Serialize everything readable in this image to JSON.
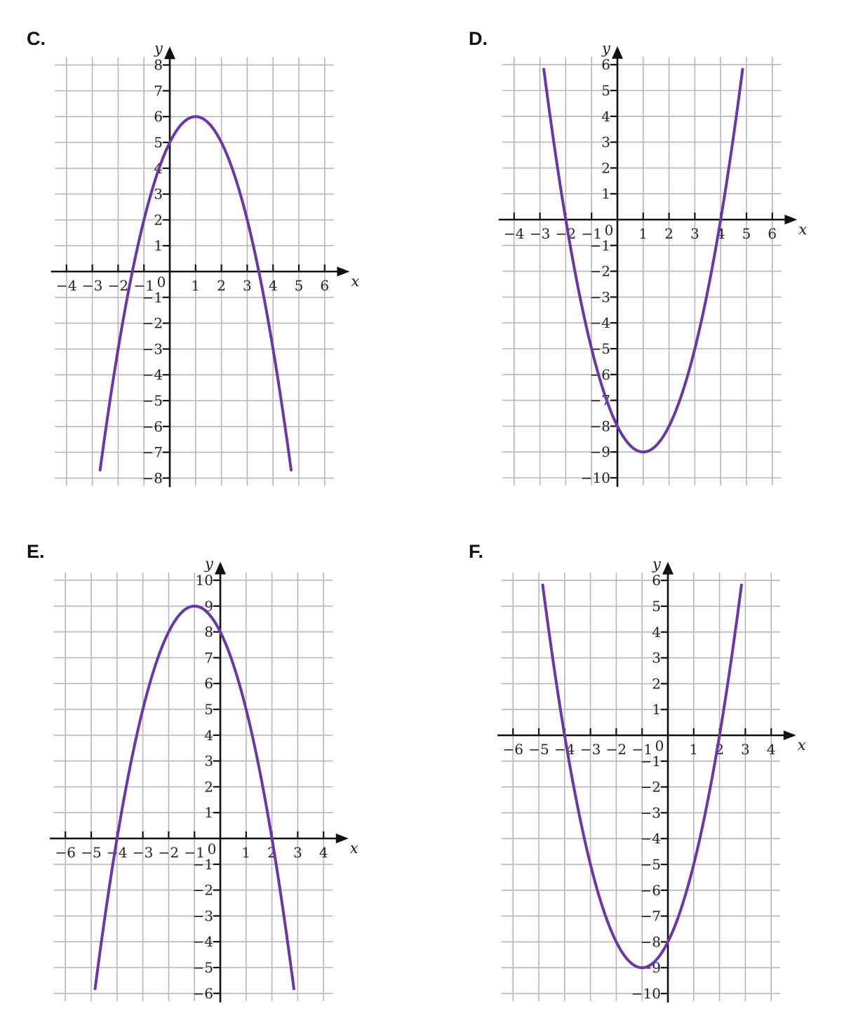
{
  "colors": {
    "curve": "#6a36a8",
    "grid": "#b8b8b8",
    "axis": "#111111"
  },
  "chart_data": [
    {
      "type": "line",
      "label": "C.",
      "xlabel": "x",
      "ylabel": "y",
      "xlim": [
        -4,
        6
      ],
      "ylim": [
        -8,
        8
      ],
      "grid": true,
      "x_ticks": [
        -4,
        -3,
        -2,
        -1,
        1,
        2,
        3,
        4,
        5,
        6
      ],
      "y_ticks": [
        -8,
        -7,
        -6,
        -5,
        -4,
        -3,
        -2,
        -1,
        1,
        2,
        3,
        4,
        5,
        6,
        7,
        8
      ],
      "origin_label": "0",
      "series": [
        {
          "a": -1,
          "h": 1,
          "k": 6,
          "x_range": [
            -2.7,
            4.7
          ],
          "key_points": [
            [
              -1.45,
              0
            ],
            [
              0,
              5
            ],
            [
              1,
              6
            ],
            [
              3.45,
              0
            ]
          ]
        }
      ]
    },
    {
      "type": "line",
      "label": "D.",
      "xlabel": "x",
      "ylabel": "y",
      "xlim": [
        -4,
        6
      ],
      "ylim": [
        -10,
        6
      ],
      "grid": true,
      "x_ticks": [
        -4,
        -3,
        -2,
        -1,
        1,
        2,
        3,
        4,
        5,
        6
      ],
      "y_ticks": [
        -10,
        -9,
        -8,
        -7,
        -6,
        -5,
        -4,
        -3,
        -2,
        -1,
        1,
        2,
        3,
        4,
        5,
        6
      ],
      "origin_label": "0",
      "series": [
        {
          "a": 1,
          "h": 1,
          "k": -9,
          "x_range": [
            -2.85,
            4.85
          ],
          "key_points": [
            [
              -2,
              0
            ],
            [
              0,
              -8
            ],
            [
              1,
              -9
            ],
            [
              4,
              0
            ]
          ]
        }
      ]
    },
    {
      "type": "line",
      "label": "E.",
      "xlabel": "x",
      "ylabel": "y",
      "xlim": [
        -6,
        4
      ],
      "ylim": [
        -6,
        10
      ],
      "grid": true,
      "x_ticks": [
        -6,
        -5,
        -4,
        -3,
        -2,
        -1,
        1,
        2,
        3,
        4
      ],
      "y_ticks": [
        -6,
        -5,
        -4,
        -3,
        -2,
        -1,
        1,
        2,
        3,
        4,
        5,
        6,
        7,
        8,
        9,
        10
      ],
      "origin_label": "0",
      "series": [
        {
          "a": -1,
          "h": -1,
          "k": 9,
          "x_range": [
            -4.85,
            2.85
          ],
          "key_points": [
            [
              -4,
              0
            ],
            [
              -1,
              9
            ],
            [
              0,
              8
            ],
            [
              2,
              0
            ]
          ]
        }
      ]
    },
    {
      "type": "line",
      "label": "F.",
      "xlabel": "x",
      "ylabel": "y",
      "xlim": [
        -6,
        4
      ],
      "ylim": [
        -10,
        6
      ],
      "grid": true,
      "x_ticks": [
        -6,
        -5,
        -4,
        -3,
        -2,
        -1,
        1,
        2,
        3,
        4
      ],
      "y_ticks": [
        -10,
        -9,
        -8,
        -7,
        -6,
        -5,
        -4,
        -3,
        -2,
        -1,
        1,
        2,
        3,
        4,
        5,
        6
      ],
      "origin_label": "0",
      "series": [
        {
          "a": 1,
          "h": -1,
          "k": -9,
          "x_range": [
            -4.85,
            2.85
          ],
          "key_points": [
            [
              -4,
              0
            ],
            [
              -1,
              -9
            ],
            [
              0,
              -8
            ],
            [
              2,
              0
            ]
          ]
        }
      ]
    }
  ]
}
